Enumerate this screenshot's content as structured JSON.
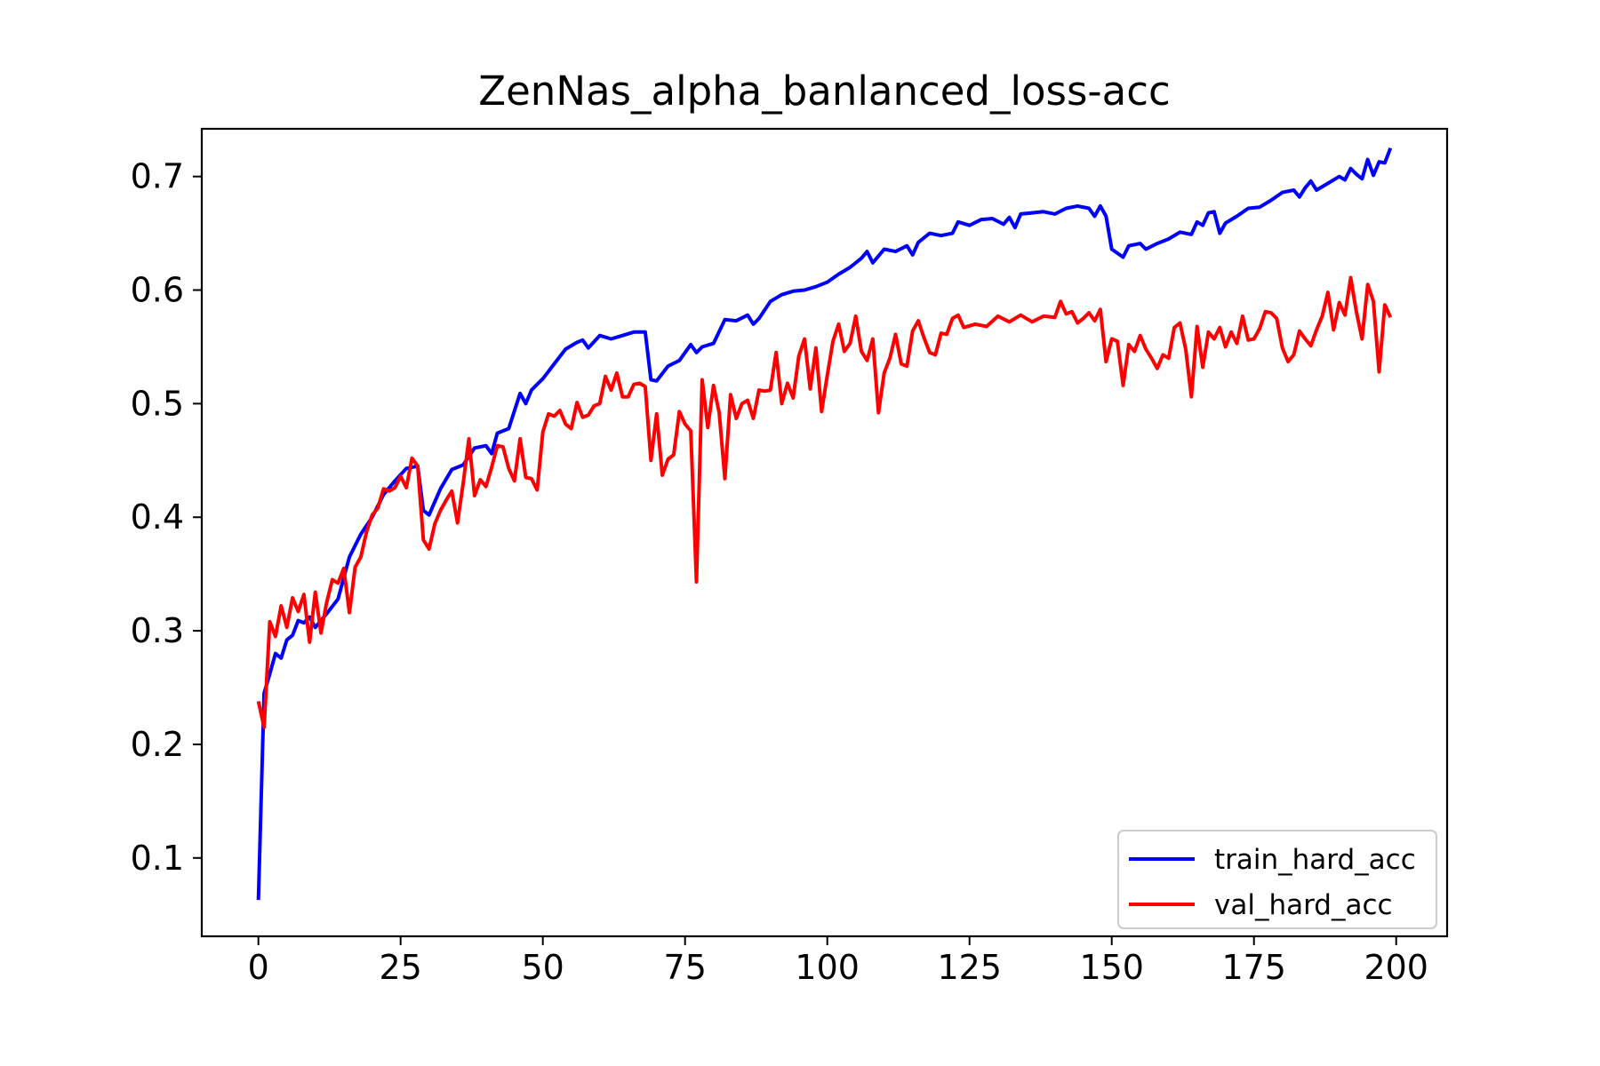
{
  "chart_data": {
    "type": "line",
    "title": "ZenNas_alpha_banlanced_loss-acc",
    "xlabel": "",
    "ylabel": "",
    "xlim": [
      -9.95,
      208.95
    ],
    "ylim": [
      0.031,
      0.742
    ],
    "xticks": [
      0,
      25,
      50,
      75,
      100,
      125,
      150,
      175,
      200
    ],
    "yticks": [
      0.1,
      0.2,
      0.3,
      0.4,
      0.5,
      0.6,
      0.7
    ],
    "grid": false,
    "legend_position": "lower right",
    "series": [
      {
        "name": "train_hard_acc",
        "color": "#0000ff",
        "points": [
          [
            0,
            0.063
          ],
          [
            1,
            0.245
          ],
          [
            2,
            0.262
          ],
          [
            3,
            0.28
          ],
          [
            4,
            0.276
          ],
          [
            5,
            0.292
          ],
          [
            6,
            0.296
          ],
          [
            7,
            0.309
          ],
          [
            8,
            0.307
          ],
          [
            9,
            0.312
          ],
          [
            10,
            0.303
          ],
          [
            12,
            0.315
          ],
          [
            14,
            0.328
          ],
          [
            16,
            0.365
          ],
          [
            18,
            0.385
          ],
          [
            20,
            0.4
          ],
          [
            22,
            0.42
          ],
          [
            24,
            0.432
          ],
          [
            26,
            0.443
          ],
          [
            28,
            0.445
          ],
          [
            29,
            0.406
          ],
          [
            30,
            0.402
          ],
          [
            32,
            0.425
          ],
          [
            34,
            0.442
          ],
          [
            36,
            0.446
          ],
          [
            38,
            0.461
          ],
          [
            40,
            0.463
          ],
          [
            41,
            0.456
          ],
          [
            42,
            0.474
          ],
          [
            44,
            0.478
          ],
          [
            46,
            0.509
          ],
          [
            47,
            0.5
          ],
          [
            48,
            0.512
          ],
          [
            50,
            0.522
          ],
          [
            52,
            0.535
          ],
          [
            54,
            0.548
          ],
          [
            56,
            0.554
          ],
          [
            57,
            0.556
          ],
          [
            58,
            0.549
          ],
          [
            60,
            0.56
          ],
          [
            62,
            0.557
          ],
          [
            64,
            0.56
          ],
          [
            66,
            0.563
          ],
          [
            68,
            0.563
          ],
          [
            69,
            0.521
          ],
          [
            70,
            0.52
          ],
          [
            72,
            0.533
          ],
          [
            74,
            0.538
          ],
          [
            76,
            0.552
          ],
          [
            77,
            0.545
          ],
          [
            78,
            0.55
          ],
          [
            80,
            0.553
          ],
          [
            82,
            0.574
          ],
          [
            84,
            0.573
          ],
          [
            86,
            0.578
          ],
          [
            87,
            0.57
          ],
          [
            88,
            0.575
          ],
          [
            90,
            0.59
          ],
          [
            92,
            0.596
          ],
          [
            94,
            0.599
          ],
          [
            96,
            0.6
          ],
          [
            98,
            0.603
          ],
          [
            100,
            0.607
          ],
          [
            102,
            0.614
          ],
          [
            104,
            0.62
          ],
          [
            106,
            0.628
          ],
          [
            107,
            0.634
          ],
          [
            108,
            0.624
          ],
          [
            110,
            0.636
          ],
          [
            112,
            0.634
          ],
          [
            114,
            0.639
          ],
          [
            115,
            0.631
          ],
          [
            116,
            0.642
          ],
          [
            118,
            0.65
          ],
          [
            120,
            0.648
          ],
          [
            122,
            0.65
          ],
          [
            123,
            0.66
          ],
          [
            125,
            0.657
          ],
          [
            127,
            0.662
          ],
          [
            129,
            0.663
          ],
          [
            131,
            0.658
          ],
          [
            132,
            0.664
          ],
          [
            133,
            0.655
          ],
          [
            134,
            0.667
          ],
          [
            136,
            0.668
          ],
          [
            138,
            0.669
          ],
          [
            140,
            0.667
          ],
          [
            142,
            0.672
          ],
          [
            144,
            0.674
          ],
          [
            146,
            0.672
          ],
          [
            147,
            0.665
          ],
          [
            148,
            0.674
          ],
          [
            149,
            0.665
          ],
          [
            150,
            0.636
          ],
          [
            152,
            0.629
          ],
          [
            153,
            0.639
          ],
          [
            155,
            0.641
          ],
          [
            156,
            0.636
          ],
          [
            158,
            0.641
          ],
          [
            160,
            0.645
          ],
          [
            162,
            0.651
          ],
          [
            164,
            0.649
          ],
          [
            165,
            0.66
          ],
          [
            166,
            0.657
          ],
          [
            167,
            0.668
          ],
          [
            168,
            0.669
          ],
          [
            169,
            0.65
          ],
          [
            170,
            0.659
          ],
          [
            172,
            0.665
          ],
          [
            174,
            0.672
          ],
          [
            176,
            0.673
          ],
          [
            178,
            0.679
          ],
          [
            180,
            0.686
          ],
          [
            182,
            0.688
          ],
          [
            183,
            0.682
          ],
          [
            184,
            0.69
          ],
          [
            185,
            0.696
          ],
          [
            186,
            0.688
          ],
          [
            188,
            0.694
          ],
          [
            190,
            0.7
          ],
          [
            191,
            0.697
          ],
          [
            192,
            0.707
          ],
          [
            193,
            0.702
          ],
          [
            194,
            0.698
          ],
          [
            195,
            0.715
          ],
          [
            196,
            0.701
          ],
          [
            197,
            0.713
          ],
          [
            198,
            0.712
          ],
          [
            199,
            0.725
          ]
        ]
      },
      {
        "name": "val_hard_acc",
        "color": "#ff0000",
        "points": [
          [
            0,
            0.238
          ],
          [
            1,
            0.215
          ],
          [
            2,
            0.308
          ],
          [
            3,
            0.295
          ],
          [
            4,
            0.322
          ],
          [
            5,
            0.303
          ],
          [
            6,
            0.329
          ],
          [
            7,
            0.317
          ],
          [
            8,
            0.332
          ],
          [
            9,
            0.29
          ],
          [
            10,
            0.334
          ],
          [
            11,
            0.298
          ],
          [
            12,
            0.325
          ],
          [
            13,
            0.345
          ],
          [
            14,
            0.342
          ],
          [
            15,
            0.355
          ],
          [
            16,
            0.316
          ],
          [
            17,
            0.356
          ],
          [
            18,
            0.365
          ],
          [
            19,
            0.387
          ],
          [
            20,
            0.402
          ],
          [
            21,
            0.408
          ],
          [
            22,
            0.425
          ],
          [
            23,
            0.423
          ],
          [
            24,
            0.426
          ],
          [
            25,
            0.436
          ],
          [
            26,
            0.426
          ],
          [
            27,
            0.452
          ],
          [
            28,
            0.445
          ],
          [
            29,
            0.38
          ],
          [
            30,
            0.372
          ],
          [
            31,
            0.394
          ],
          [
            32,
            0.406
          ],
          [
            33,
            0.415
          ],
          [
            34,
            0.423
          ],
          [
            35,
            0.395
          ],
          [
            36,
            0.43
          ],
          [
            37,
            0.469
          ],
          [
            38,
            0.419
          ],
          [
            39,
            0.433
          ],
          [
            40,
            0.427
          ],
          [
            41,
            0.444
          ],
          [
            42,
            0.463
          ],
          [
            43,
            0.462
          ],
          [
            44,
            0.443
          ],
          [
            45,
            0.432
          ],
          [
            46,
            0.469
          ],
          [
            47,
            0.435
          ],
          [
            48,
            0.434
          ],
          [
            49,
            0.424
          ],
          [
            50,
            0.475
          ],
          [
            51,
            0.491
          ],
          [
            52,
            0.489
          ],
          [
            53,
            0.494
          ],
          [
            54,
            0.482
          ],
          [
            55,
            0.478
          ],
          [
            56,
            0.501
          ],
          [
            57,
            0.488
          ],
          [
            58,
            0.49
          ],
          [
            59,
            0.498
          ],
          [
            60,
            0.5
          ],
          [
            61,
            0.524
          ],
          [
            62,
            0.512
          ],
          [
            63,
            0.527
          ],
          [
            64,
            0.506
          ],
          [
            65,
            0.506
          ],
          [
            66,
            0.517
          ],
          [
            67,
            0.518
          ],
          [
            68,
            0.515
          ],
          [
            69,
            0.45
          ],
          [
            70,
            0.491
          ],
          [
            71,
            0.437
          ],
          [
            72,
            0.451
          ],
          [
            73,
            0.455
          ],
          [
            74,
            0.493
          ],
          [
            75,
            0.482
          ],
          [
            76,
            0.476
          ],
          [
            77,
            0.343
          ],
          [
            78,
            0.521
          ],
          [
            79,
            0.479
          ],
          [
            80,
            0.516
          ],
          [
            81,
            0.492
          ],
          [
            82,
            0.434
          ],
          [
            83,
            0.508
          ],
          [
            84,
            0.487
          ],
          [
            85,
            0.5
          ],
          [
            86,
            0.503
          ],
          [
            87,
            0.487
          ],
          [
            88,
            0.512
          ],
          [
            89,
            0.511
          ],
          [
            90,
            0.512
          ],
          [
            91,
            0.545
          ],
          [
            92,
            0.5
          ],
          [
            93,
            0.518
          ],
          [
            94,
            0.505
          ],
          [
            95,
            0.542
          ],
          [
            96,
            0.557
          ],
          [
            97,
            0.513
          ],
          [
            98,
            0.549
          ],
          [
            99,
            0.493
          ],
          [
            100,
            0.525
          ],
          [
            101,
            0.555
          ],
          [
            102,
            0.57
          ],
          [
            103,
            0.546
          ],
          [
            104,
            0.553
          ],
          [
            105,
            0.577
          ],
          [
            106,
            0.546
          ],
          [
            107,
            0.538
          ],
          [
            108,
            0.557
          ],
          [
            109,
            0.492
          ],
          [
            110,
            0.527
          ],
          [
            111,
            0.54
          ],
          [
            112,
            0.561
          ],
          [
            113,
            0.535
          ],
          [
            114,
            0.533
          ],
          [
            115,
            0.564
          ],
          [
            116,
            0.573
          ],
          [
            117,
            0.558
          ],
          [
            118,
            0.545
          ],
          [
            119,
            0.543
          ],
          [
            120,
            0.562
          ],
          [
            121,
            0.561
          ],
          [
            122,
            0.575
          ],
          [
            123,
            0.578
          ],
          [
            124,
            0.567
          ],
          [
            126,
            0.57
          ],
          [
            128,
            0.568
          ],
          [
            130,
            0.577
          ],
          [
            132,
            0.572
          ],
          [
            134,
            0.578
          ],
          [
            136,
            0.572
          ],
          [
            138,
            0.577
          ],
          [
            140,
            0.576
          ],
          [
            141,
            0.59
          ],
          [
            142,
            0.579
          ],
          [
            143,
            0.581
          ],
          [
            144,
            0.571
          ],
          [
            145,
            0.575
          ],
          [
            146,
            0.58
          ],
          [
            147,
            0.573
          ],
          [
            148,
            0.583
          ],
          [
            149,
            0.537
          ],
          [
            150,
            0.557
          ],
          [
            151,
            0.555
          ],
          [
            152,
            0.516
          ],
          [
            153,
            0.552
          ],
          [
            154,
            0.546
          ],
          [
            155,
            0.56
          ],
          [
            156,
            0.548
          ],
          [
            157,
            0.54
          ],
          [
            158,
            0.531
          ],
          [
            159,
            0.543
          ],
          [
            160,
            0.54
          ],
          [
            161,
            0.567
          ],
          [
            162,
            0.571
          ],
          [
            163,
            0.548
          ],
          [
            164,
            0.506
          ],
          [
            165,
            0.568
          ],
          [
            166,
            0.532
          ],
          [
            167,
            0.563
          ],
          [
            168,
            0.557
          ],
          [
            169,
            0.567
          ],
          [
            170,
            0.55
          ],
          [
            171,
            0.563
          ],
          [
            172,
            0.553
          ],
          [
            173,
            0.577
          ],
          [
            174,
            0.556
          ],
          [
            175,
            0.557
          ],
          [
            176,
            0.566
          ],
          [
            177,
            0.581
          ],
          [
            178,
            0.58
          ],
          [
            179,
            0.575
          ],
          [
            180,
            0.549
          ],
          [
            181,
            0.537
          ],
          [
            182,
            0.543
          ],
          [
            183,
            0.564
          ],
          [
            184,
            0.557
          ],
          [
            185,
            0.551
          ],
          [
            186,
            0.565
          ],
          [
            187,
            0.577
          ],
          [
            188,
            0.598
          ],
          [
            189,
            0.565
          ],
          [
            190,
            0.589
          ],
          [
            191,
            0.578
          ],
          [
            192,
            0.611
          ],
          [
            193,
            0.581
          ],
          [
            194,
            0.557
          ],
          [
            195,
            0.605
          ],
          [
            196,
            0.59
          ],
          [
            197,
            0.528
          ],
          [
            198,
            0.587
          ],
          [
            199,
            0.576
          ]
        ]
      }
    ]
  }
}
